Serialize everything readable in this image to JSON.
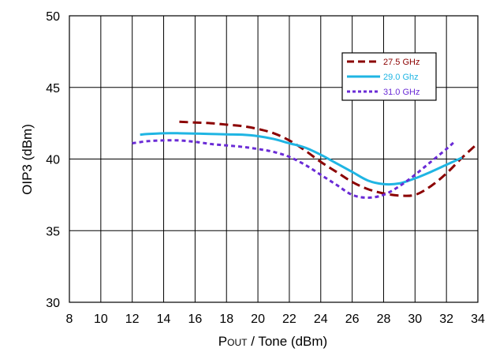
{
  "chart_data": {
    "type": "line",
    "title": "",
    "xlabel": "POUT / Tone (dBm)",
    "xlabel_main": "P",
    "xlabel_sub": "OUT",
    "xlabel_rest": " / Tone (dBm)",
    "ylabel": "OIP3 (dBm)",
    "xlim": [
      8,
      34
    ],
    "ylim": [
      30,
      50
    ],
    "xticks": [
      8,
      10,
      12,
      14,
      16,
      18,
      20,
      22,
      24,
      26,
      28,
      30,
      32,
      34
    ],
    "yticks": [
      30,
      35,
      40,
      45,
      50
    ],
    "grid": true,
    "legend_position": "top-right",
    "series": [
      {
        "name": "27.5 GHz",
        "color": "#8b0000",
        "dash": "dashed",
        "points": [
          [
            15,
            42.6
          ],
          [
            16,
            42.55
          ],
          [
            17,
            42.5
          ],
          [
            18,
            42.4
          ],
          [
            19,
            42.3
          ],
          [
            20,
            42.1
          ],
          [
            21,
            41.8
          ],
          [
            22,
            41.3
          ],
          [
            23,
            40.6
          ],
          [
            24,
            39.8
          ],
          [
            25,
            39.1
          ],
          [
            26,
            38.4
          ],
          [
            27,
            37.9
          ],
          [
            28,
            37.6
          ],
          [
            29,
            37.45
          ],
          [
            30,
            37.5
          ],
          [
            31,
            38.1
          ],
          [
            32,
            39.0
          ],
          [
            33,
            40.1
          ],
          [
            34,
            41.1
          ]
        ]
      },
      {
        "name": "29.0 Ghz",
        "color": "#1fb5e3",
        "dash": "solid",
        "points": [
          [
            12.5,
            41.7
          ],
          [
            13,
            41.75
          ],
          [
            14,
            41.8
          ],
          [
            15,
            41.8
          ],
          [
            16,
            41.78
          ],
          [
            17,
            41.75
          ],
          [
            18,
            41.72
          ],
          [
            19,
            41.7
          ],
          [
            20,
            41.6
          ],
          [
            21,
            41.4
          ],
          [
            22,
            41.1
          ],
          [
            23,
            40.8
          ],
          [
            24,
            40.3
          ],
          [
            25,
            39.7
          ],
          [
            26,
            39.1
          ],
          [
            27,
            38.5
          ],
          [
            28,
            38.25
          ],
          [
            29,
            38.3
          ],
          [
            30,
            38.65
          ],
          [
            31,
            39.1
          ],
          [
            32,
            39.6
          ],
          [
            33,
            40.1
          ]
        ]
      },
      {
        "name": "31.0 GHz",
        "color": "#6a2bd6",
        "dash": "dotted",
        "points": [
          [
            12,
            41.1
          ],
          [
            13,
            41.25
          ],
          [
            14,
            41.3
          ],
          [
            15,
            41.3
          ],
          [
            16,
            41.2
          ],
          [
            17,
            41.05
          ],
          [
            18,
            40.95
          ],
          [
            19,
            40.85
          ],
          [
            20,
            40.7
          ],
          [
            21,
            40.5
          ],
          [
            22,
            40.15
          ],
          [
            23,
            39.6
          ],
          [
            24,
            38.9
          ],
          [
            25,
            38.2
          ],
          [
            26,
            37.5
          ],
          [
            27,
            37.3
          ],
          [
            28,
            37.5
          ],
          [
            29,
            38.1
          ],
          [
            30,
            38.9
          ],
          [
            31,
            39.8
          ],
          [
            32,
            40.7
          ],
          [
            32.5,
            41.2
          ]
        ]
      }
    ]
  }
}
